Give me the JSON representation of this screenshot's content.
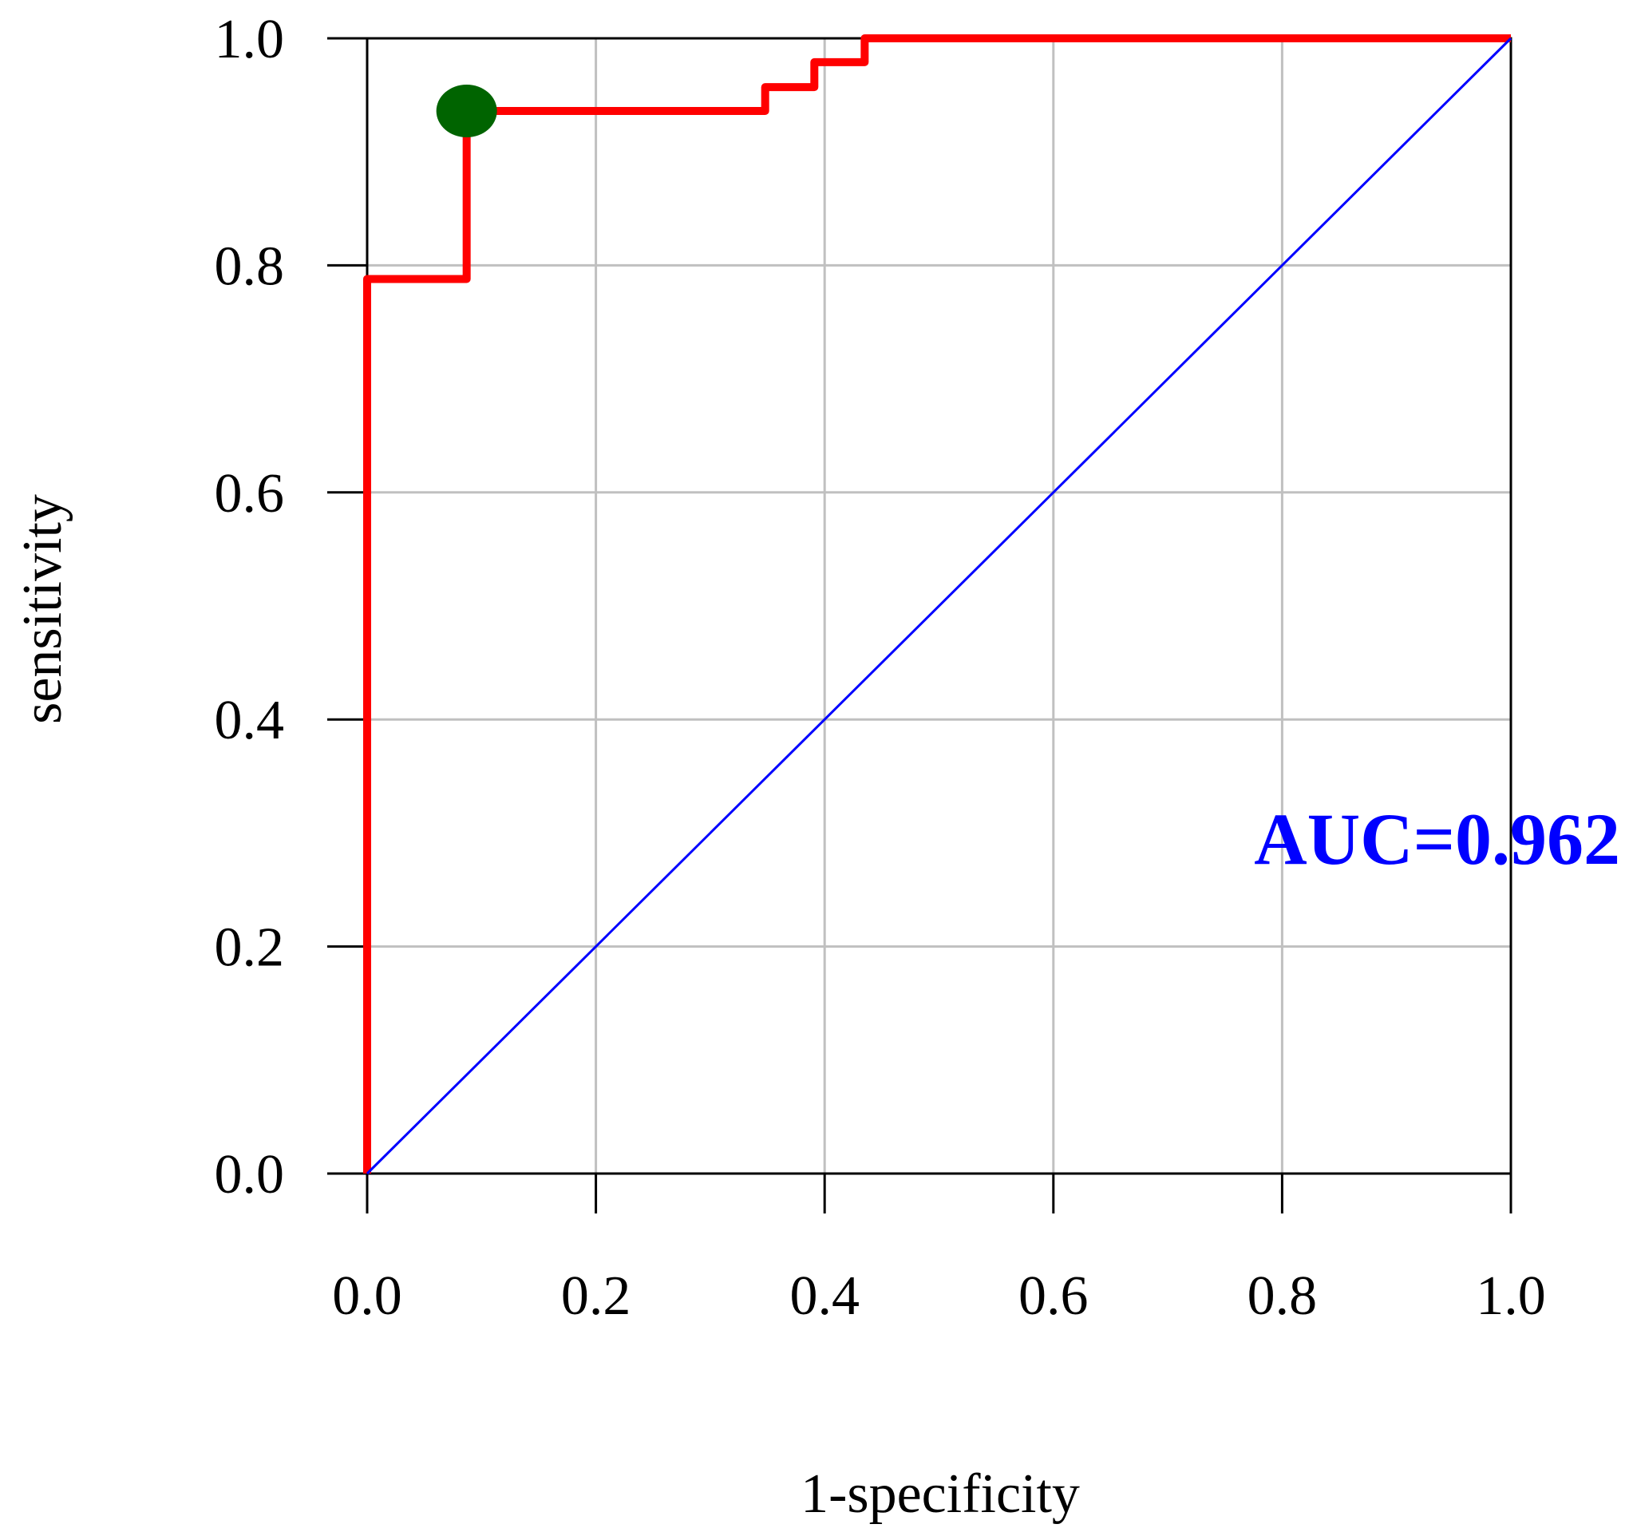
{
  "chart_data": {
    "type": "line",
    "title": "",
    "xlabel": "1-specificity",
    "ylabel": "sensitivity",
    "xlim": [
      0,
      1
    ],
    "ylim": [
      0,
      1
    ],
    "x_ticks": [
      "0.0",
      "0.2",
      "0.4",
      "0.6",
      "0.8",
      "1.0"
    ],
    "y_ticks": [
      "0.0",
      "0.2",
      "0.4",
      "0.6",
      "0.8",
      "1.0"
    ],
    "x_tick_values": [
      0,
      0.2,
      0.4,
      0.6,
      0.8,
      1.0
    ],
    "y_tick_values": [
      0,
      0.2,
      0.4,
      0.6,
      0.8,
      1.0
    ],
    "grid": true,
    "series": [
      {
        "color": "#ff0000",
        "points": [
          [
            0.0,
            0.0
          ],
          [
            0.0,
            0.788
          ],
          [
            0.087,
            0.788
          ],
          [
            0.087,
            0.936
          ],
          [
            0.348,
            0.936
          ],
          [
            0.348,
            0.957
          ],
          [
            0.391,
            0.957
          ],
          [
            0.391,
            0.979
          ],
          [
            0.435,
            0.979
          ],
          [
            0.435,
            1.0
          ],
          [
            1.0,
            1.0
          ]
        ]
      },
      {
        "color": "#0000ff",
        "points": [
          [
            0.0,
            0.0
          ],
          [
            1.0,
            1.0
          ]
        ]
      }
    ],
    "optimal_point": {
      "x": 0.087,
      "y": 0.936,
      "color": "#006400"
    },
    "annotation": {
      "text": "AUC=0.962",
      "color": "#0000ff"
    },
    "colors": {
      "grid": "#c0c0c0",
      "axis": "#000000",
      "roc_curve": "#ff0000",
      "reference_line": "#0000ff",
      "optimal_point": "#006400"
    }
  }
}
